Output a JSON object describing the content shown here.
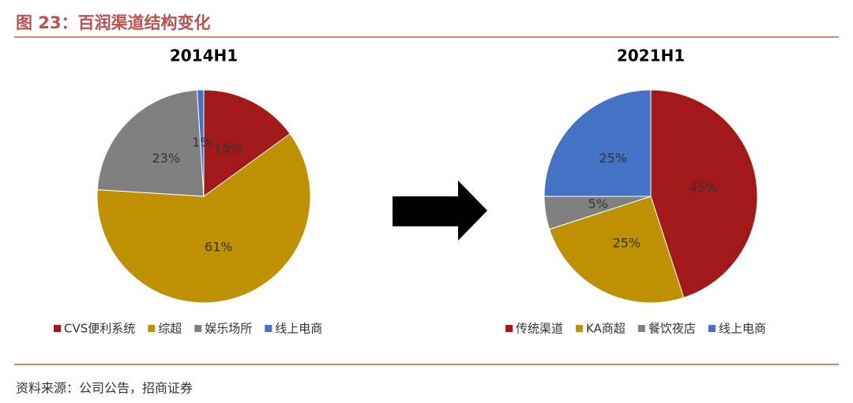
{
  "header": {
    "title": "图 23：百润渠道结构变化"
  },
  "footer": {
    "source": "资料来源：公司公告，招商证券"
  },
  "chart_data": [
    {
      "type": "pie",
      "title": "2014H1",
      "categories": [
        "CVS便利系统",
        "综超",
        "娱乐场所",
        "线上电商"
      ],
      "values": [
        15,
        61,
        23,
        1
      ],
      "value_labels": [
        "15%",
        "61%",
        "23%",
        "1%"
      ],
      "colors": [
        "#a31818",
        "#bf9000",
        "#808080",
        "#4472c4"
      ]
    },
    {
      "type": "pie",
      "title": "2021H1",
      "categories": [
        "传统渠道",
        "KA商超",
        "餐饮夜店",
        "线上电商"
      ],
      "values": [
        45,
        25,
        5,
        25
      ],
      "value_labels": [
        "45%",
        "25%",
        "5%",
        "25%"
      ],
      "colors": [
        "#a31818",
        "#bf9000",
        "#808080",
        "#4472c4"
      ]
    }
  ]
}
